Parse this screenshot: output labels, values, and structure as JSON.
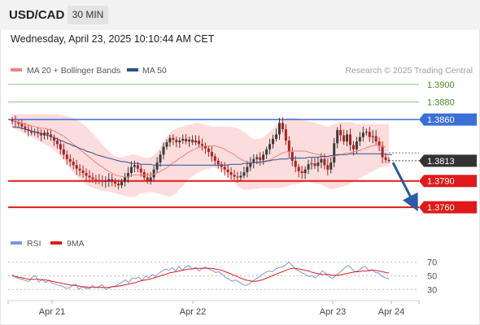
{
  "header": {
    "pair": "USD/CAD",
    "timeframe": "30 MIN"
  },
  "datetime": "Wednesday, April 23, 2025 10:10:44 AM CET",
  "colors": {
    "bollinger": "#f08080",
    "bollinger_fill": "#fbd7d7",
    "ma50": "#2b4f8f",
    "resistance_blue": "#3b6fd8",
    "target_green": "#8cc47a",
    "support_red": "#e01a1a",
    "current_dark": "#333333",
    "arrow": "#2b5aa6",
    "candle_up": "#3a3a3a",
    "candle_down": "#b02020",
    "rsi": "#7b98d6",
    "rsi_ma": "#e01a1a"
  },
  "chart_data": [
    {
      "type": "line",
      "title": "",
      "legend": [
        {
          "label": "MA 20 + Bollinger Bands",
          "color": "#f08080"
        },
        {
          "label": "MA 50",
          "color": "#2b4f8f"
        }
      ],
      "watermark": "Research © 2025 Trading Central",
      "ylim": [
        1.3737,
        1.3911
      ],
      "x_ticks": [
        "Apr 21",
        "Apr 22",
        "Apr 23",
        "Apr 24"
      ],
      "levels": [
        {
          "value": 1.39,
          "label": "1.3900",
          "kind": "target"
        },
        {
          "value": 1.388,
          "label": "1.3880",
          "kind": "target"
        },
        {
          "value": 1.386,
          "label": "1.3860",
          "kind": "resistance"
        },
        {
          "value": 1.3813,
          "label": "1.3813",
          "kind": "current"
        },
        {
          "value": 1.379,
          "label": "1.3790",
          "kind": "support"
        },
        {
          "value": 1.376,
          "label": "1.3760",
          "kind": "support"
        }
      ],
      "close_series": [
        1.3858,
        1.3857,
        1.3855,
        1.3852,
        1.3849,
        1.3847,
        1.3845,
        1.3846,
        1.3844,
        1.3842,
        1.3845,
        1.3843,
        1.384,
        1.3836,
        1.3832,
        1.3826,
        1.382,
        1.3815,
        1.3812,
        1.3808,
        1.3804,
        1.3802,
        1.3799,
        1.3796,
        1.3794,
        1.3792,
        1.3791,
        1.379,
        1.3789,
        1.379,
        1.3792,
        1.3789,
        1.3787,
        1.3785,
        1.3789,
        1.3794,
        1.3799,
        1.3806,
        1.3808,
        1.3804,
        1.38,
        1.3794,
        1.379,
        1.3794,
        1.3803,
        1.3811,
        1.382,
        1.3829,
        1.3834,
        1.3839,
        1.3837,
        1.3834,
        1.3836,
        1.3838,
        1.3835,
        1.3837,
        1.3834,
        1.3836,
        1.3832,
        1.383,
        1.3827,
        1.3823,
        1.3818,
        1.3813,
        1.3809,
        1.3806,
        1.3803,
        1.38,
        1.3797,
        1.3795,
        1.3794,
        1.3796,
        1.38,
        1.3806,
        1.3811,
        1.3815,
        1.3817,
        1.3814,
        1.382,
        1.3826,
        1.3832,
        1.3838,
        1.3843,
        1.3856,
        1.3849,
        1.3836,
        1.3823,
        1.3813,
        1.3806,
        1.3801,
        1.3799,
        1.3803,
        1.3809,
        1.381,
        1.3807,
        1.3811,
        1.3815,
        1.3808,
        1.3803,
        1.3811,
        1.3833,
        1.3848,
        1.3842,
        1.3835,
        1.3843,
        1.3831,
        1.3826,
        1.3835,
        1.384,
        1.3845,
        1.3846,
        1.384,
        1.3841,
        1.3835,
        1.383,
        1.3817,
        1.3814,
        1.3813
      ],
      "ma20_series": [
        1.3858,
        1.3857,
        1.3857,
        1.3856,
        1.3855,
        1.3854,
        1.3853,
        1.3852,
        1.3851,
        1.385,
        1.385,
        1.3849,
        1.3848,
        1.3847,
        1.3845,
        1.3843,
        1.3841,
        1.3838,
        1.3835,
        1.3832,
        1.3829,
        1.3826,
        1.3823,
        1.382,
        1.3817,
        1.3814,
        1.3811,
        1.3808,
        1.3806,
        1.3803,
        1.3801,
        1.3799,
        1.3797,
        1.3796,
        1.3795,
        1.3795,
        1.3795,
        1.3796,
        1.3797,
        1.3797,
        1.3797,
        1.3797,
        1.3797,
        1.3797,
        1.3798,
        1.3799,
        1.3801,
        1.3803,
        1.3805,
        1.3808,
        1.3811,
        1.3813,
        1.3816,
        1.3818,
        1.3821,
        1.3823,
        1.3825,
        1.3827,
        1.3828,
        1.3829,
        1.383,
        1.383,
        1.383,
        1.383,
        1.3829,
        1.3828,
        1.3826,
        1.3824,
        1.3822,
        1.382,
        1.3817,
        1.3815,
        1.3813,
        1.3812,
        1.3811,
        1.3811,
        1.3811,
        1.381,
        1.3811,
        1.3812,
        1.3814,
        1.3816,
        1.3818,
        1.382,
        1.3822,
        1.3823,
        1.3824,
        1.3824,
        1.3824,
        1.3824,
        1.3824,
        1.3824,
        1.3823,
        1.3822,
        1.3821,
        1.382,
        1.3819,
        1.3817,
        1.3816,
        1.3817,
        1.3818,
        1.3819,
        1.382,
        1.3821,
        1.3822,
        1.3822,
        1.3823,
        1.3824,
        1.3825,
        1.3826,
        1.3828,
        1.3829,
        1.383,
        1.3831,
        1.383,
        1.3829,
        1.3829
      ],
      "bb_upper_series": [
        1.3866,
        1.3866,
        1.3866,
        1.3866,
        1.3866,
        1.3866,
        1.3866,
        1.3866,
        1.3866,
        1.3866,
        1.3866,
        1.3866,
        1.3866,
        1.3866,
        1.3866,
        1.3865,
        1.3865,
        1.3864,
        1.3863,
        1.3862,
        1.386,
        1.3858,
        1.3855,
        1.3852,
        1.3848,
        1.3844,
        1.384,
        1.3836,
        1.3832,
        1.3828,
        1.3824,
        1.3821,
        1.3818,
        1.3817,
        1.3817,
        1.3818,
        1.3819,
        1.382,
        1.382,
        1.3819,
        1.3818,
        1.3817,
        1.3816,
        1.3817,
        1.3819,
        1.3823,
        1.3828,
        1.3834,
        1.384,
        1.3845,
        1.3848,
        1.385,
        1.3851,
        1.3852,
        1.3853,
        1.3854,
        1.3855,
        1.3856,
        1.3856,
        1.3855,
        1.3854,
        1.3853,
        1.3852,
        1.3852,
        1.3852,
        1.3852,
        1.3852,
        1.3852,
        1.3852,
        1.3851,
        1.385,
        1.3848,
        1.3846,
        1.3843,
        1.384,
        1.3838,
        1.3838,
        1.3838,
        1.384,
        1.3843,
        1.3846,
        1.385,
        1.3853,
        1.3858,
        1.386,
        1.3862,
        1.3862,
        1.3862,
        1.3862,
        1.3861,
        1.386,
        1.3859,
        1.3858,
        1.3857,
        1.3856,
        1.3855,
        1.3854,
        1.3853,
        1.3852,
        1.3853,
        1.3855,
        1.3856,
        1.3857,
        1.3857,
        1.3857,
        1.3857,
        1.3856,
        1.3855,
        1.3855,
        1.3855,
        1.3855,
        1.3855,
        1.3855,
        1.3855,
        1.3855,
        1.3855,
        1.3855,
        1.3855
      ],
      "bb_lower_series": [
        1.385,
        1.3849,
        1.3848,
        1.3846,
        1.3844,
        1.3842,
        1.384,
        1.3838,
        1.3836,
        1.3834,
        1.3832,
        1.383,
        1.3828,
        1.3825,
        1.3822,
        1.3818,
        1.3814,
        1.3809,
        1.3804,
        1.38,
        1.3796,
        1.3792,
        1.3789,
        1.3786,
        1.3784,
        1.3782,
        1.3781,
        1.378,
        1.3779,
        1.3778,
        1.3778,
        1.3777,
        1.3776,
        1.3775,
        1.3774,
        1.3773,
        1.3772,
        1.3772,
        1.3772,
        1.3774,
        1.3776,
        1.3776,
        1.3777,
        1.3777,
        1.3777,
        1.3776,
        1.3775,
        1.3774,
        1.3773,
        1.3772,
        1.3774,
        1.3776,
        1.3781,
        1.3784,
        1.3789,
        1.3792,
        1.3795,
        1.3798,
        1.38,
        1.3802,
        1.3803,
        1.3804,
        1.3805,
        1.3805,
        1.3804,
        1.3802,
        1.3799,
        1.3795,
        1.3791,
        1.3788,
        1.3784,
        1.3782,
        1.378,
        1.378,
        1.378,
        1.3781,
        1.3781,
        1.3782,
        1.3782,
        1.3782,
        1.3782,
        1.3782,
        1.3782,
        1.3782,
        1.3783,
        1.3783,
        1.3785,
        1.3786,
        1.3786,
        1.3787,
        1.3788,
        1.3789,
        1.3789,
        1.3788,
        1.3787,
        1.3787,
        1.3786,
        1.3784,
        1.3782,
        1.3781,
        1.3781,
        1.3782,
        1.3783,
        1.3784,
        1.3785,
        1.3787,
        1.3789,
        1.3791,
        1.3793,
        1.3795,
        1.3797,
        1.3799,
        1.3801,
        1.3803,
        1.3805,
        1.3806,
        1.3806,
        1.3806
      ],
      "ma50_series": [
        1.3852,
        1.3851,
        1.3851,
        1.385,
        1.3849,
        1.3848,
        1.3847,
        1.3846,
        1.3845,
        1.3844,
        1.3843,
        1.3842,
        1.3841,
        1.3839,
        1.3838,
        1.3836,
        1.3835,
        1.3833,
        1.3832,
        1.383,
        1.3829,
        1.3827,
        1.3826,
        1.3824,
        1.3823,
        1.3822,
        1.382,
        1.3819,
        1.3818,
        1.3817,
        1.3816,
        1.3815,
        1.3814,
        1.3813,
        1.3812,
        1.3812,
        1.3811,
        1.381,
        1.381,
        1.381,
        1.3809,
        1.3809,
        1.3809,
        1.3809,
        1.3808,
        1.3808,
        1.3808,
        1.3808,
        1.3808,
        1.3808,
        1.3808,
        1.3808,
        1.3808,
        1.3808,
        1.3808,
        1.3808,
        1.3808,
        1.3808,
        1.3808,
        1.3808,
        1.3808,
        1.3808,
        1.3808,
        1.3808,
        1.3808,
        1.3808,
        1.3808,
        1.3808,
        1.3809,
        1.3809,
        1.3809,
        1.3809,
        1.381,
        1.381,
        1.381,
        1.3811,
        1.3811,
        1.3812,
        1.3812,
        1.3813,
        1.3813,
        1.3814,
        1.3814,
        1.3815,
        1.3815,
        1.3815,
        1.3816,
        1.3816,
        1.3816,
        1.3816,
        1.3816,
        1.3816,
        1.3817,
        1.3817,
        1.3817,
        1.3817,
        1.3818,
        1.3818,
        1.3818,
        1.3819,
        1.3819,
        1.382,
        1.382,
        1.382,
        1.382,
        1.3821,
        1.3821,
        1.3821,
        1.3821,
        1.3821,
        1.3821,
        1.3821,
        1.3821,
        1.3821,
        1.3821,
        1.3821,
        1.382,
        1.382,
        1.382
      ]
    },
    {
      "type": "line",
      "title": "",
      "legend": [
        {
          "label": "RSI",
          "color": "#7b98d6"
        },
        {
          "label": "9MA",
          "color": "#e01a1a"
        }
      ],
      "ylim": [
        22,
        78
      ],
      "y_ticks": [
        {
          "value": 70,
          "label": "70"
        },
        {
          "value": 50,
          "label": "50"
        },
        {
          "value": 30,
          "label": "30"
        }
      ],
      "rsi_series": [
        52,
        48,
        46,
        45,
        43,
        42,
        48,
        50,
        41,
        45,
        40,
        44,
        39,
        38,
        36,
        35,
        32,
        32,
        36,
        38,
        30,
        34,
        32,
        31,
        36,
        33,
        34,
        37,
        30,
        32,
        34,
        35,
        38,
        41,
        44,
        40,
        47,
        46,
        48,
        43,
        50,
        47,
        52,
        49,
        54,
        57,
        60,
        58,
        62,
        57,
        64,
        58,
        63,
        65,
        60,
        62,
        57,
        61,
        63,
        60,
        58,
        55,
        56,
        52,
        48,
        45,
        42,
        44,
        41,
        38,
        36,
        38,
        42,
        45,
        48,
        52,
        55,
        57,
        56,
        60,
        62,
        63,
        66,
        70,
        65,
        60,
        57,
        54,
        52,
        49,
        50,
        47,
        52,
        57,
        54,
        49,
        46,
        50,
        54,
        58,
        63,
        65,
        60,
        56,
        58,
        62,
        64,
        57,
        59,
        55,
        54,
        49,
        47,
        46
      ],
      "rsi_ma_series": [
        50,
        49,
        48,
        47,
        46,
        45,
        45,
        45,
        45,
        44,
        44,
        43,
        42,
        41,
        40,
        39,
        38,
        37,
        36,
        36,
        35,
        34,
        34,
        33,
        33,
        33,
        33,
        33,
        33,
        33,
        34,
        34,
        35,
        36,
        37,
        38,
        39,
        40,
        42,
        43,
        44,
        45,
        46,
        48,
        49,
        51,
        52,
        54,
        55,
        56,
        57,
        58,
        59,
        60,
        60,
        61,
        61,
        61,
        61,
        61,
        61,
        60,
        59,
        58,
        56,
        54,
        52,
        50,
        48,
        46,
        44,
        43,
        42,
        42,
        43,
        44,
        46,
        48,
        50,
        52,
        54,
        56,
        58,
        60,
        61,
        61,
        60,
        59,
        58,
        57,
        55,
        54,
        53,
        52,
        52,
        52,
        51,
        51,
        51,
        52,
        53,
        54,
        55,
        56,
        56,
        57,
        57,
        58,
        58,
        58,
        57,
        56,
        55,
        54
      ]
    }
  ]
}
